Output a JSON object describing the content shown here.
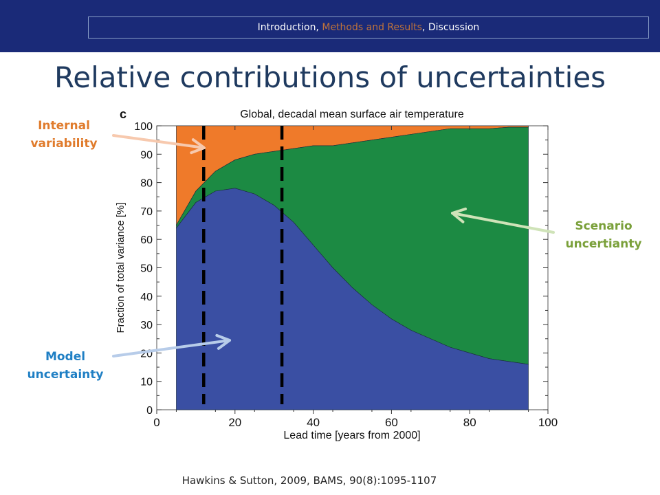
{
  "header": {
    "nav": {
      "part1": "Introduction, ",
      "active": "Methods and Results",
      "part2": ", Discussion"
    }
  },
  "slide": {
    "title": "Relative contributions of uncertainties",
    "citation": "Hawkins & Sutton, 2009, BAMS, 90(8):1095-1107"
  },
  "callouts": {
    "internal": [
      "Internal",
      "variability"
    ],
    "scenario": [
      "Scenario",
      "uncertianty"
    ],
    "model": [
      "Model",
      "uncertainty"
    ]
  },
  "colors": {
    "internal": "#ef7a2a",
    "scenario": "#1c8a43",
    "model": "#3a4fa3",
    "internal_label": "#e07b2c",
    "scenario_label": "#7aa03a",
    "model_label": "#1f7fc4"
  },
  "chart_data": {
    "type": "area",
    "panel_label": "c",
    "title": "Global, decadal mean surface air temperature",
    "xlabel": "Lead time  [years from 2000]",
    "ylabel": "Fraction of total variance  [%]",
    "xlim": [
      0,
      100
    ],
    "ylim": [
      0,
      100
    ],
    "xticks": [
      "0",
      "20",
      "40",
      "60",
      "80",
      "100"
    ],
    "yticks": [
      "0",
      "10",
      "20",
      "30",
      "40",
      "50",
      "60",
      "70",
      "80",
      "90",
      "100"
    ],
    "x": [
      5,
      10,
      15,
      20,
      25,
      30,
      35,
      40,
      45,
      50,
      55,
      60,
      65,
      70,
      75,
      80,
      85,
      90,
      95
    ],
    "series": [
      {
        "name": "Model uncertainty",
        "values": [
          64,
          73,
          77,
          78,
          76,
          72,
          66,
          58,
          50,
          43,
          37,
          32,
          28,
          25,
          22,
          20,
          18,
          17,
          16
        ]
      },
      {
        "name": "Scenario uncertianty",
        "values": [
          1,
          4,
          7,
          10,
          14,
          19,
          26,
          35,
          43,
          51,
          58,
          64,
          69,
          73,
          77,
          79,
          81,
          82.5,
          83.5
        ]
      },
      {
        "name": "Internal variability",
        "values": [
          35,
          23,
          16,
          12,
          10,
          9,
          8,
          7,
          7,
          6,
          5,
          4,
          3,
          2,
          1,
          1,
          1,
          0.5,
          0.5
        ]
      }
    ],
    "vlines": [
      12,
      32
    ],
    "grid": false
  }
}
